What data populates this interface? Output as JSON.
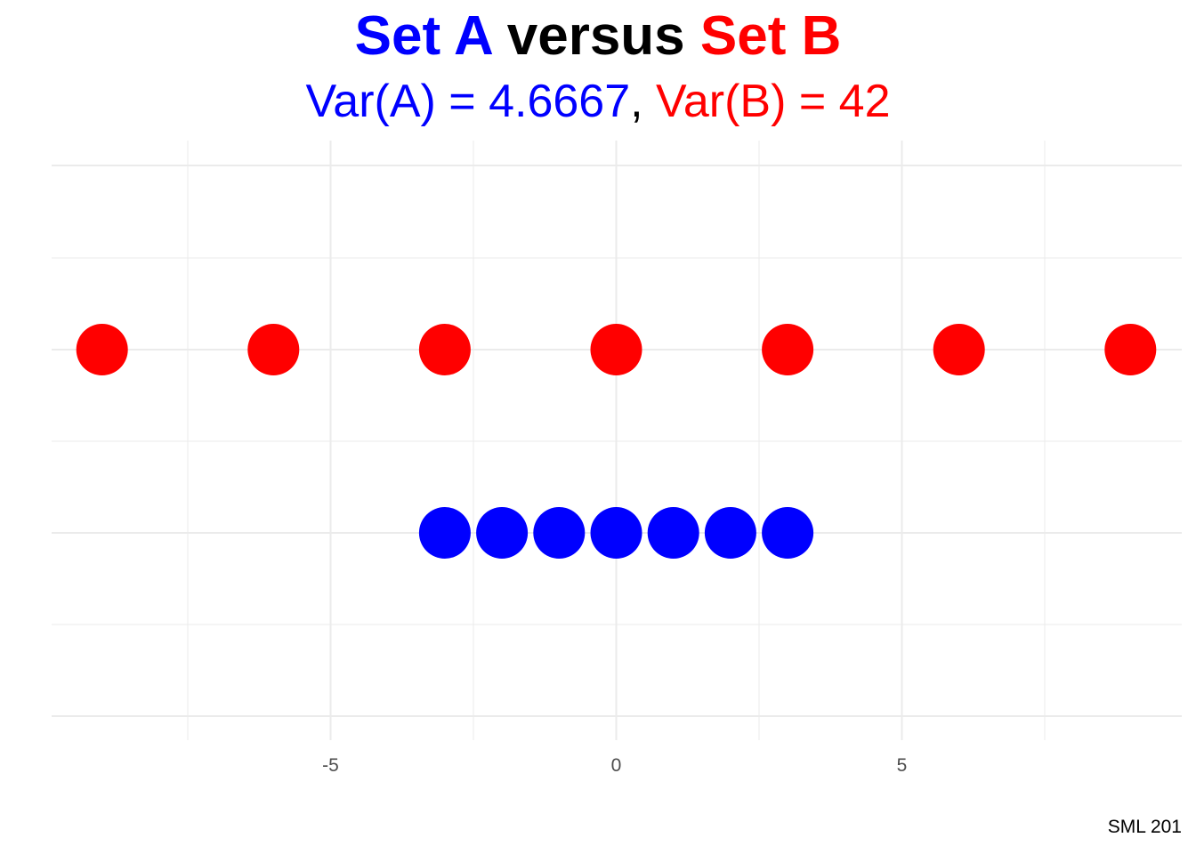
{
  "chart_data": {
    "type": "scatter",
    "title": {
      "part1": "Set A",
      "part2": " versus ",
      "part3": "Set B"
    },
    "subtitle": {
      "part1": "Var(A) = 4.6667",
      "part2": ", ",
      "part3": "Var(B) = 42"
    },
    "caption": "SML 201",
    "xlim": [
      -9.6,
      9.9
    ],
    "x_ticks": [
      -5,
      0,
      5
    ],
    "x_tick_labels": [
      "-5",
      "0",
      "5"
    ],
    "y_axis_visible": false,
    "grid": true,
    "series": [
      {
        "name": "Set B",
        "color": "#ff0000",
        "row": 2,
        "x": [
          -9,
          -6,
          -3,
          0,
          3,
          6,
          9
        ]
      },
      {
        "name": "Set A",
        "color": "#0000ff",
        "row": 1,
        "x": [
          -3,
          -2,
          -1,
          0,
          1,
          2,
          3
        ]
      }
    ],
    "colors": {
      "set_a": "#0000ff",
      "set_b": "#ff0000",
      "neutral": "#000000",
      "grid": "#ebebeb",
      "tick_text": "#4d4d4d"
    }
  }
}
